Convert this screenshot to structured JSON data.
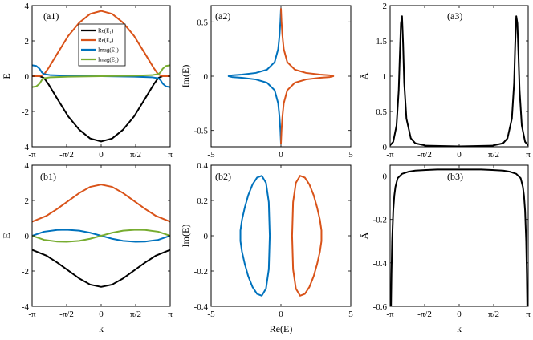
{
  "colors": {
    "black": "#000000",
    "orange": "#D95319",
    "blue": "#0072BD",
    "green": "#77AC30"
  },
  "chart_data": [
    {
      "id": "a1",
      "type": "line",
      "panel_label": "(a1)",
      "xlabel": "",
      "ylabel": "E",
      "xlim": [
        -3.14159,
        3.14159
      ],
      "ylim": [
        -4,
        4
      ],
      "x_ticks": [
        -3.14159,
        -1.5708,
        0,
        1.5708,
        3.14159
      ],
      "x_tick_labels": [
        "-π",
        "-π/2",
        "0",
        "π/2",
        "π"
      ],
      "y_ticks": [
        -4,
        -2,
        0,
        2,
        4
      ],
      "y_tick_labels": [
        "-4",
        "-2",
        "0",
        "2",
        "4"
      ],
      "legend": {
        "position": "top-right-inside"
      },
      "series": [
        {
          "name": "Re(E₁)",
          "color": "black",
          "x": [
            -3.14159,
            -2.8,
            -2.6,
            -2.4,
            -2.0,
            -1.5,
            -1.0,
            -0.5,
            0,
            0.5,
            1.0,
            1.5,
            2.0,
            2.4,
            2.6,
            2.8,
            3.14159
          ],
          "y": [
            0,
            0,
            -0.1,
            -0.45,
            -1.27,
            -2.28,
            -3.03,
            -3.53,
            -3.7,
            -3.53,
            -3.03,
            -2.28,
            -1.27,
            -0.45,
            -0.1,
            0,
            0
          ]
        },
        {
          "name": "Re(E₂)",
          "color": "orange",
          "x": [
            -3.14159,
            -2.8,
            -2.6,
            -2.4,
            -2.0,
            -1.5,
            -1.0,
            -0.5,
            0,
            0.5,
            1.0,
            1.5,
            2.0,
            2.4,
            2.6,
            2.8,
            3.14159
          ],
          "y": [
            0,
            0,
            0.1,
            0.45,
            1.27,
            2.28,
            3.03,
            3.53,
            3.7,
            3.53,
            3.03,
            2.28,
            1.27,
            0.45,
            0.1,
            0,
            0
          ]
        },
        {
          "name": "Imag(E₁)",
          "color": "blue",
          "x": [
            -3.14159,
            -2.95,
            -2.8,
            -2.7,
            -2.6,
            -2.3,
            -1.5,
            0,
            1.5,
            2.3,
            2.6,
            2.7,
            2.8,
            2.95,
            3.14159
          ],
          "y": [
            0.62,
            0.58,
            0.42,
            0.22,
            0.12,
            0.06,
            0.03,
            0,
            -0.03,
            -0.06,
            -0.12,
            -0.22,
            -0.42,
            -0.58,
            -0.62
          ]
        },
        {
          "name": "Imag(E₂)",
          "color": "green",
          "x": [
            -3.14159,
            -2.95,
            -2.8,
            -2.7,
            -2.6,
            -2.3,
            -1.5,
            0,
            1.5,
            2.3,
            2.6,
            2.7,
            2.8,
            2.95,
            3.14159
          ],
          "y": [
            -0.62,
            -0.58,
            -0.42,
            -0.22,
            -0.12,
            -0.06,
            -0.03,
            0,
            0.03,
            0.06,
            0.12,
            0.22,
            0.42,
            0.58,
            0.62
          ]
        }
      ]
    },
    {
      "id": "a2",
      "type": "line",
      "panel_label": "(a2)",
      "xlabel": "",
      "ylabel": "Im(E)",
      "xlim": [
        -5,
        5
      ],
      "ylim": [
        -0.65,
        0.65
      ],
      "x_ticks": [
        -5,
        0,
        5
      ],
      "x_tick_labels": [
        "-5",
        "0",
        "5"
      ],
      "y_ticks": [
        -0.5,
        0,
        0.5
      ],
      "y_tick_labels": [
        "-0.5",
        "0",
        "0.5"
      ],
      "series": [
        {
          "color": "blue",
          "x": [
            0,
            -0.04,
            -0.1,
            -0.2,
            -0.45,
            -1.0,
            -1.8,
            -2.8,
            -3.5,
            -3.75,
            -3.5,
            -2.8,
            -1.8,
            -1.0,
            -0.45,
            -0.2,
            -0.1,
            -0.04,
            0
          ],
          "y": [
            0.62,
            0.5,
            0.38,
            0.25,
            0.13,
            0.06,
            0.03,
            0.015,
            0.008,
            0,
            -0.008,
            -0.015,
            -0.03,
            -0.06,
            -0.13,
            -0.25,
            -0.38,
            -0.5,
            -0.62
          ]
        },
        {
          "color": "orange",
          "x": [
            0,
            0.04,
            0.1,
            0.2,
            0.45,
            1.0,
            1.8,
            2.8,
            3.5,
            3.75,
            3.5,
            2.8,
            1.8,
            1.0,
            0.45,
            0.2,
            0.1,
            0.04,
            0
          ],
          "y": [
            0.62,
            0.5,
            0.38,
            0.25,
            0.13,
            0.06,
            0.03,
            0.015,
            0.008,
            0,
            -0.008,
            -0.015,
            -0.03,
            -0.06,
            -0.13,
            -0.25,
            -0.38,
            -0.5,
            -0.62
          ]
        }
      ]
    },
    {
      "id": "a3",
      "type": "line",
      "panel_label": "(a3)",
      "xlabel": "",
      "ylabel": "Ā",
      "xlim": [
        -3.14159,
        3.14159
      ],
      "ylim": [
        0,
        2
      ],
      "x_ticks": [
        -3.14159,
        -1.5708,
        0,
        1.5708,
        3.14159
      ],
      "x_tick_labels": [
        "-π",
        "-π/2",
        "0",
        "π/2",
        "π"
      ],
      "y_ticks": [
        0,
        0.5,
        1,
        1.5,
        2
      ],
      "y_tick_labels": [
        "0",
        "0.5",
        "1",
        "1.5",
        "2"
      ],
      "series": [
        {
          "color": "black",
          "x": [
            -3.14159,
            -3.0,
            -2.85,
            -2.75,
            -2.7,
            -2.65,
            -2.6,
            -2.55,
            -2.5,
            -2.4,
            -2.2,
            -2.0,
            -1.5,
            0,
            1.5,
            2.0,
            2.2,
            2.4,
            2.5,
            2.55,
            2.6,
            2.65,
            2.7,
            2.75,
            2.85,
            3.0,
            3.14159
          ],
          "y": [
            0.02,
            0.07,
            0.3,
            0.8,
            1.3,
            1.75,
            1.85,
            1.45,
            0.9,
            0.4,
            0.12,
            0.05,
            0.015,
            0.005,
            0.015,
            0.05,
            0.12,
            0.4,
            0.9,
            1.45,
            1.85,
            1.75,
            1.3,
            0.8,
            0.3,
            0.07,
            0.02
          ]
        }
      ]
    },
    {
      "id": "b1",
      "type": "line",
      "panel_label": "(b1)",
      "xlabel": "k",
      "ylabel": "E",
      "xlim": [
        -3.14159,
        3.14159
      ],
      "ylim": [
        -4,
        4
      ],
      "x_ticks": [
        -3.14159,
        -1.5708,
        0,
        1.5708,
        3.14159
      ],
      "x_tick_labels": [
        "-π",
        "-π/2",
        "0",
        "π/2",
        "π"
      ],
      "y_ticks": [
        -4,
        -2,
        0,
        2,
        4
      ],
      "y_tick_labels": [
        "-4",
        "-2",
        "0",
        "2",
        "4"
      ],
      "series": [
        {
          "color": "black",
          "x": [
            -3.14159,
            -2.5,
            -2.0,
            -1.5,
            -1.0,
            -0.5,
            0,
            0.5,
            1.0,
            1.5,
            2.0,
            2.5,
            3.14159
          ],
          "y": [
            -0.8,
            -1.12,
            -1.52,
            -1.97,
            -2.42,
            -2.77,
            -2.9,
            -2.77,
            -2.42,
            -1.97,
            -1.52,
            -1.12,
            -0.8
          ]
        },
        {
          "color": "orange",
          "x": [
            -3.14159,
            -2.5,
            -2.0,
            -1.5,
            -1.0,
            -0.5,
            0,
            0.5,
            1.0,
            1.5,
            2.0,
            2.5,
            3.14159
          ],
          "y": [
            0.8,
            1.12,
            1.52,
            1.97,
            2.42,
            2.77,
            2.9,
            2.77,
            2.42,
            1.97,
            1.52,
            1.12,
            0.8
          ]
        },
        {
          "color": "blue",
          "x": [
            -3.14159,
            -2.6,
            -2.0,
            -1.57,
            -1.0,
            -0.5,
            0,
            0.5,
            1.0,
            1.57,
            2.0,
            2.6,
            3.14159
          ],
          "y": [
            0,
            0.23,
            0.33,
            0.34,
            0.29,
            0.17,
            0,
            -0.17,
            -0.29,
            -0.34,
            -0.33,
            -0.23,
            0
          ]
        },
        {
          "color": "green",
          "x": [
            -3.14159,
            -2.6,
            -2.0,
            -1.57,
            -1.0,
            -0.5,
            0,
            0.5,
            1.0,
            1.57,
            2.0,
            2.6,
            3.14159
          ],
          "y": [
            0,
            -0.23,
            -0.33,
            -0.34,
            -0.29,
            -0.17,
            0,
            0.17,
            0.29,
            0.34,
            0.33,
            0.23,
            0
          ]
        }
      ]
    },
    {
      "id": "b2",
      "type": "line",
      "panel_label": "(b2)",
      "xlabel": "Re(E)",
      "ylabel": "Im(E)",
      "xlim": [
        -5,
        5
      ],
      "ylim": [
        -0.4,
        0.4
      ],
      "x_ticks": [
        -5,
        0,
        5
      ],
      "x_tick_labels": [
        "-5",
        "0",
        "5"
      ],
      "y_ticks": [
        -0.4,
        -0.2,
        0,
        0.2,
        0.4
      ],
      "y_tick_labels": [
        "-0.4",
        "-0.2",
        "0",
        "0.2",
        "0.4"
      ],
      "series": [
        {
          "color": "blue",
          "x": [
            -0.8,
            -0.87,
            -1.07,
            -1.37,
            -1.71,
            -2.04,
            -2.34,
            -2.59,
            -2.79,
            -2.9,
            -2.9,
            -2.79,
            -2.59,
            -2.34,
            -2.04,
            -1.71,
            -1.37,
            -1.07,
            -0.87,
            -0.8
          ],
          "y": [
            0,
            0.19,
            0.3,
            0.34,
            0.33,
            0.29,
            0.23,
            0.16,
            0.09,
            0.03,
            -0.03,
            -0.09,
            -0.16,
            -0.23,
            -0.29,
            -0.33,
            -0.34,
            -0.3,
            -0.19,
            0
          ]
        },
        {
          "color": "orange",
          "x": [
            0.8,
            0.87,
            1.07,
            1.37,
            1.71,
            2.04,
            2.34,
            2.59,
            2.79,
            2.9,
            2.9,
            2.79,
            2.59,
            2.34,
            2.04,
            1.71,
            1.37,
            1.07,
            0.87,
            0.8
          ],
          "y": [
            0,
            0.19,
            0.3,
            0.34,
            0.33,
            0.29,
            0.23,
            0.16,
            0.09,
            0.03,
            -0.03,
            -0.09,
            -0.16,
            -0.23,
            -0.29,
            -0.33,
            -0.34,
            -0.3,
            -0.19,
            0
          ]
        }
      ]
    },
    {
      "id": "b3",
      "type": "line",
      "panel_label": "(b3)",
      "xlabel": "k",
      "ylabel": "Ā",
      "xlim": [
        -3.14159,
        3.14159
      ],
      "ylim": [
        -0.6,
        0.05
      ],
      "x_ticks": [
        -3.14159,
        -1.5708,
        0,
        1.5708,
        3.14159
      ],
      "x_tick_labels": [
        "-π",
        "-π/2",
        "0",
        "π/2",
        "π"
      ],
      "y_ticks": [
        -0.6,
        -0.4,
        -0.2,
        0
      ],
      "y_tick_labels": [
        "-0.6",
        "-0.4",
        "-0.2",
        "0"
      ],
      "series": [
        {
          "color": "black",
          "x": [
            -3.1,
            -3.08,
            -3.05,
            -3.0,
            -2.95,
            -2.9,
            -2.8,
            -2.6,
            -2.3,
            -2.0,
            -1.5,
            -1.0,
            0,
            1.0,
            1.5,
            2.0,
            2.3,
            2.6,
            2.8,
            2.9,
            2.95,
            3.0,
            3.05,
            3.08,
            3.1
          ],
          "y": [
            -0.6,
            -0.45,
            -0.3,
            -0.16,
            -0.09,
            -0.05,
            -0.01,
            0.01,
            0.02,
            0.025,
            0.028,
            0.03,
            0.03,
            0.03,
            0.028,
            0.025,
            0.02,
            0.01,
            -0.01,
            -0.05,
            -0.09,
            -0.16,
            -0.3,
            -0.45,
            -0.6
          ]
        }
      ]
    }
  ]
}
